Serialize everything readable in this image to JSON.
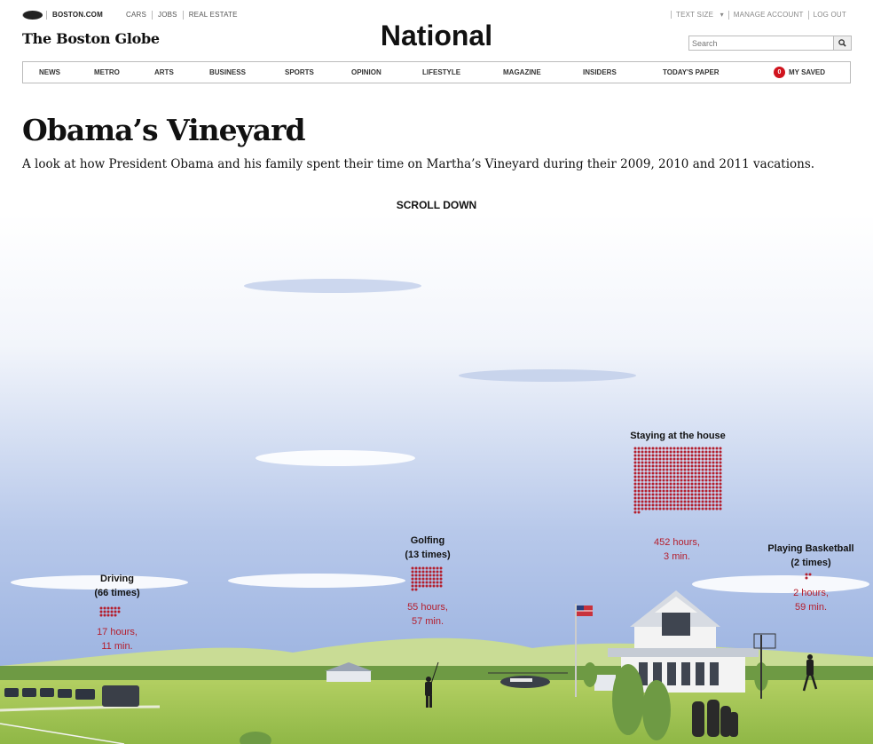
{
  "topbar": {
    "brand": "BOSTON.COM",
    "links": [
      "CARS",
      "JOBS",
      "REAL ESTATE"
    ],
    "right_links": [
      "TEXT SIZE",
      "MANAGE ACCOUNT",
      "LOG OUT"
    ]
  },
  "logo": "The Boston Globe",
  "section": "National",
  "search": {
    "placeholder": "Search"
  },
  "nav": {
    "items": [
      "NEWS",
      "METRO",
      "ARTS",
      "BUSINESS",
      "SPORTS",
      "OPINION",
      "LIFESTYLE",
      "MAGAZINE",
      "INSIDERS",
      "TODAY'S PAPER"
    ],
    "saved_count": "0",
    "saved_label": "MY SAVED"
  },
  "article": {
    "title": "Obama’s Vineyard",
    "subtitle": "A look at how President Obama and his family spent their time on Martha’s Vineyard during their 2009, 2010 and 2011 vacations.",
    "scroll_prompt": "SCROLL DOWN"
  },
  "activities": [
    {
      "name": "Driving",
      "count": "(66 times)",
      "hours": "17 hours,",
      "minutes": "11 min.",
      "dot_count": 17
    },
    {
      "name": "Golfing",
      "count": "(13 times)",
      "hours": "55 hours,",
      "minutes": "57 min.",
      "dot_count": 56
    },
    {
      "name": "Staying at the house",
      "count": "",
      "hours": "452 hours,",
      "minutes": "3 min.",
      "dot_count": 452
    },
    {
      "name": "Playing Basketball",
      "count": "(2 times)",
      "hours": "2 hours,",
      "minutes": "59 min.",
      "dot_count": 3
    }
  ],
  "colors": {
    "accent_red": "#b41e2d",
    "sky_top": "#ffffff",
    "sky_bottom": "#8fa9dc",
    "grass": "#9fc24a"
  }
}
